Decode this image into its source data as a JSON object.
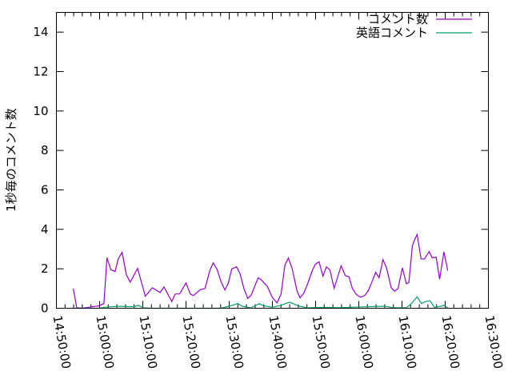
{
  "chart_data": {
    "type": "line",
    "title": "",
    "xlabel": "",
    "ylabel": "1秒毎のコメント数",
    "xlim": [
      "14:50:00",
      "16:30:00"
    ],
    "ylim": [
      0,
      15
    ],
    "x_ticks": [
      "14:50:00",
      "15:00:00",
      "15:10:00",
      "15:20:00",
      "15:30:00",
      "15:40:00",
      "15:50:00",
      "16:00:00",
      "16:10:00",
      "16:20:00",
      "16:30:00"
    ],
    "x_minor_tick_interval_minutes": 2,
    "y_ticks": [
      "0",
      "2",
      "4",
      "6",
      "8",
      "10",
      "12",
      "14"
    ],
    "grid": false,
    "legend_position": "top-right",
    "series": [
      {
        "name": "コメント数",
        "color": "#9400d3",
        "points": [
          [
            "14:53:54",
            1.0
          ],
          [
            "14:54:42",
            0.03
          ],
          [
            "14:56:00",
            0.0
          ],
          [
            "14:58:00",
            0.07
          ],
          [
            "14:59:54",
            0.12
          ],
          [
            "15:01:00",
            0.24
          ],
          [
            "15:01:42",
            2.56
          ],
          [
            "15:02:36",
            1.96
          ],
          [
            "15:03:36",
            1.86
          ],
          [
            "15:04:18",
            2.5
          ],
          [
            "15:05:12",
            2.83
          ],
          [
            "15:06:12",
            1.69
          ],
          [
            "15:07:06",
            1.32
          ],
          [
            "15:08:48",
            2.02
          ],
          [
            "15:10:36",
            0.61
          ],
          [
            "15:12:12",
            1.04
          ],
          [
            "15:14:00",
            0.8
          ],
          [
            "15:14:54",
            1.08
          ],
          [
            "15:16:42",
            0.34
          ],
          [
            "15:17:30",
            0.72
          ],
          [
            "15:18:30",
            0.72
          ],
          [
            "15:20:00",
            1.28
          ],
          [
            "15:21:00",
            0.72
          ],
          [
            "15:21:42",
            0.64
          ],
          [
            "15:23:18",
            0.94
          ],
          [
            "15:24:24",
            1.0
          ],
          [
            "15:25:30",
            1.9
          ],
          [
            "15:26:18",
            2.3
          ],
          [
            "15:27:12",
            1.97
          ],
          [
            "15:28:06",
            1.36
          ],
          [
            "15:29:00",
            0.93
          ],
          [
            "15:29:48",
            1.27
          ],
          [
            "15:30:36",
            1.99
          ],
          [
            "15:31:42",
            2.1
          ],
          [
            "15:32:30",
            1.76
          ],
          [
            "15:33:24",
            1.0
          ],
          [
            "15:34:18",
            0.5
          ],
          [
            "15:35:06",
            0.66
          ],
          [
            "15:36:42",
            1.55
          ],
          [
            "15:37:30",
            1.42
          ],
          [
            "15:38:48",
            1.12
          ],
          [
            "15:40:00",
            0.54
          ],
          [
            "15:41:06",
            0.27
          ],
          [
            "15:42:00",
            0.71
          ],
          [
            "15:42:54",
            2.2
          ],
          [
            "15:43:42",
            2.54
          ],
          [
            "15:44:36",
            1.99
          ],
          [
            "15:45:42",
            0.87
          ],
          [
            "15:46:24",
            0.53
          ],
          [
            "15:47:12",
            0.74
          ],
          [
            "15:48:00",
            1.15
          ],
          [
            "15:49:06",
            1.83
          ],
          [
            "15:49:54",
            2.22
          ],
          [
            "15:50:48",
            2.36
          ],
          [
            "15:51:42",
            1.63
          ],
          [
            "15:52:30",
            2.09
          ],
          [
            "15:53:18",
            1.95
          ],
          [
            "15:54:18",
            1.01
          ],
          [
            "15:55:06",
            1.58
          ],
          [
            "15:55:54",
            2.15
          ],
          [
            "15:56:54",
            1.65
          ],
          [
            "15:57:42",
            1.6
          ],
          [
            "15:58:30",
            1.01
          ],
          [
            "15:59:24",
            0.7
          ],
          [
            "16:00:24",
            0.56
          ],
          [
            "16:01:24",
            0.65
          ],
          [
            "16:02:12",
            0.9
          ],
          [
            "16:03:00",
            1.31
          ],
          [
            "16:03:54",
            1.82
          ],
          [
            "16:04:42",
            1.55
          ],
          [
            "16:05:36",
            2.46
          ],
          [
            "16:06:24",
            2.06
          ],
          [
            "16:07:30",
            1.04
          ],
          [
            "16:08:18",
            0.86
          ],
          [
            "16:09:06",
            1.0
          ],
          [
            "16:10:06",
            2.05
          ],
          [
            "16:11:00",
            1.24
          ],
          [
            "16:11:36",
            1.31
          ],
          [
            "16:12:24",
            3.17
          ],
          [
            "16:13:00",
            3.51
          ],
          [
            "16:13:30",
            3.74
          ],
          [
            "16:14:24",
            2.5
          ],
          [
            "16:15:12",
            2.5
          ],
          [
            "16:16:18",
            2.87
          ],
          [
            "16:17:00",
            2.56
          ],
          [
            "16:17:54",
            2.59
          ],
          [
            "16:18:42",
            1.47
          ],
          [
            "16:19:42",
            2.86
          ],
          [
            "16:20:36",
            1.9
          ]
        ]
      },
      {
        "name": "英語コメント",
        "color": "#009e73",
        "points": [
          [
            "14:53:54",
            0
          ],
          [
            "15:00:00",
            0
          ],
          [
            "15:01:00",
            0.05
          ],
          [
            "15:03:00",
            0.08
          ],
          [
            "15:05:00",
            0.1
          ],
          [
            "15:06:00",
            0.08
          ],
          [
            "15:08:00",
            0.08
          ],
          [
            "15:09:00",
            0.15
          ],
          [
            "15:10:00",
            0.03
          ],
          [
            "15:12:00",
            0
          ],
          [
            "15:28:00",
            0
          ],
          [
            "15:30:00",
            0.1
          ],
          [
            "15:32:00",
            0.24
          ],
          [
            "15:33:00",
            0.1
          ],
          [
            "15:35:00",
            0.02
          ],
          [
            "15:37:00",
            0.23
          ],
          [
            "15:38:00",
            0.12
          ],
          [
            "15:40:00",
            0.05
          ],
          [
            "15:42:00",
            0.15
          ],
          [
            "15:44:00",
            0.31
          ],
          [
            "15:46:00",
            0.12
          ],
          [
            "15:48:00",
            0.02
          ],
          [
            "15:52:00",
            0.05
          ],
          [
            "15:55:00",
            0.03
          ],
          [
            "16:06:00",
            0.1
          ],
          [
            "16:08:00",
            0.03
          ],
          [
            "16:11:00",
            0.03
          ],
          [
            "16:12:00",
            0.2
          ],
          [
            "16:13:30",
            0.57
          ],
          [
            "16:14:30",
            0.24
          ],
          [
            "16:15:30",
            0.35
          ],
          [
            "16:16:30",
            0.38
          ],
          [
            "16:17:30",
            0.05
          ],
          [
            "16:19:00",
            0.1
          ],
          [
            "16:19:42",
            0.15
          ],
          [
            "16:20:36",
            0.02
          ]
        ]
      }
    ]
  }
}
